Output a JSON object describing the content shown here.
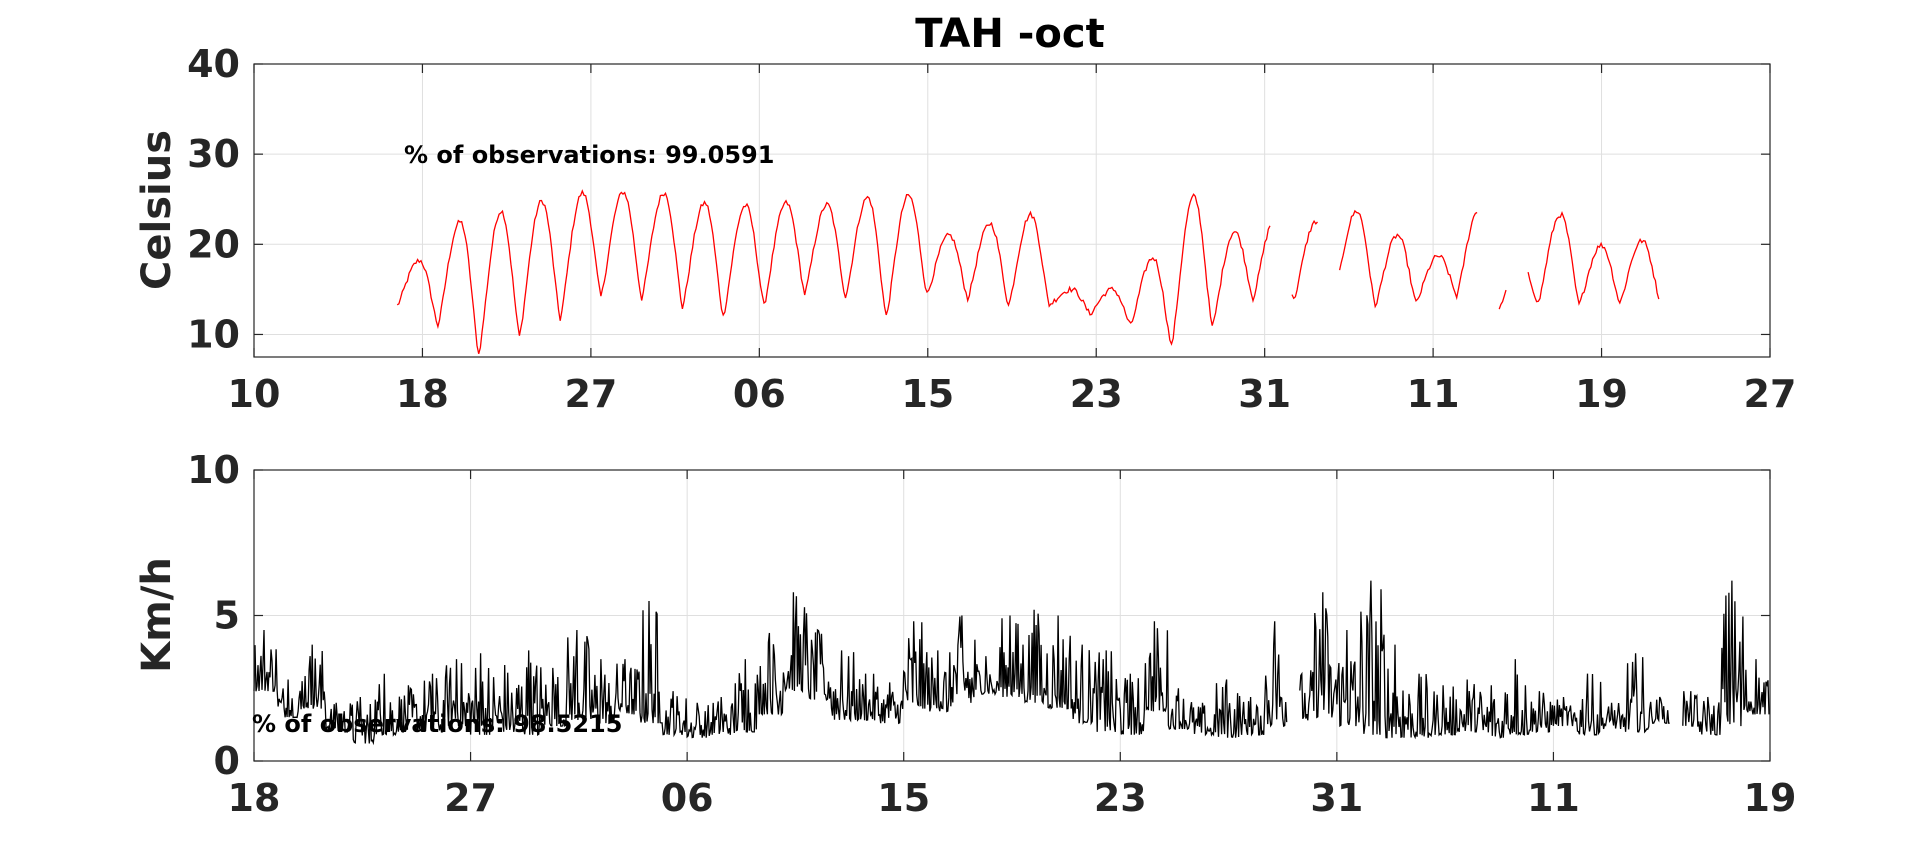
{
  "chart_data": [
    {
      "type": "line",
      "title": "TAH -oct",
      "ylabel": "Celsius",
      "ylim": [
        7.5,
        40
      ],
      "yticks": [
        10,
        20,
        30,
        40
      ],
      "xlim": [
        0,
        90
      ],
      "xtick_positions": [
        0,
        10,
        20,
        30,
        40,
        50,
        60,
        70,
        80,
        90
      ],
      "xtick_labels": [
        "10",
        "18",
        "27",
        "06",
        "15",
        "23",
        "31",
        "11",
        "19",
        "27"
      ],
      "annotation": "% of observations: 99.0591",
      "grid": true,
      "series": [
        {
          "color": "#ff0000",
          "diurnal_peaks": [
            18.2,
            22.5,
            23.7,
            24.8,
            25.7,
            25.8,
            25.7,
            24.6,
            24.3,
            24.6,
            24.4,
            25.2,
            25.4,
            21.0,
            22.3,
            23.3,
            15.0,
            15.0,
            18.5,
            25.3,
            21.4,
            22.9,
            22.5,
            23.7,
            21.0,
            18.7,
            23.9,
            18.0,
            23.3,
            19.9,
            20.4
          ],
          "diurnal_troughs": [
            13.2,
            11.0,
            7.8,
            9.8,
            11.7,
            14.2,
            14.0,
            13.0,
            12.0,
            13.2,
            14.5,
            14.2,
            12.0,
            14.5,
            14.0,
            13.2,
            13.3,
            12.3,
            11.0,
            8.7,
            10.8,
            14.0,
            13.8,
            14.5,
            13.2,
            13.5,
            14.3,
            12.3,
            13.5,
            13.3,
            13.5
          ],
          "gaps_at_day": [
            61.0,
            63.8,
            73.3,
            75.0
          ]
        }
      ]
    },
    {
      "type": "line",
      "title": "",
      "ylabel": "Km/h",
      "ylim": [
        0,
        10
      ],
      "yticks": [
        0,
        5,
        10
      ],
      "xlim": [
        0,
        63
      ],
      "xtick_positions": [
        0,
        9,
        18,
        27,
        36,
        45,
        54,
        63
      ],
      "xtick_labels": [
        "18",
        "27",
        "06",
        "15",
        "23",
        "31",
        "11",
        "19"
      ],
      "annotation": "% of observations: 98.5215",
      "grid": true,
      "series": [
        {
          "color": "#000000",
          "daily_peaks": [
            4.5,
            2.8,
            4.0,
            2.0,
            2.2,
            3.0,
            2.6,
            3.0,
            3.5,
            3.7,
            3.3,
            3.8,
            3.2,
            4.5,
            3.5,
            3.5,
            5.5,
            2.4,
            2.0,
            2.2,
            3.5,
            4.4,
            5.8,
            4.5,
            3.8,
            3.0,
            2.7,
            4.8,
            3.8,
            5.0,
            3.6,
            5.0,
            5.2,
            5.0,
            4.0,
            3.8,
            3.0,
            4.8,
            2.5,
            2.0,
            2.8,
            2.2,
            4.8,
            3.2,
            5.8,
            4.5,
            6.2,
            4.0,
            3.0,
            2.6,
            2.8,
            2.6,
            3.5,
            2.4,
            2.2,
            3.0,
            2.0,
            3.7,
            2.2,
            2.4,
            2.2,
            6.2,
            3.5
          ],
          "daily_troughs": [
            2.4,
            1.5,
            1.8,
            1.0,
            0.6,
            0.9,
            1.0,
            1.0,
            1.2,
            0.9,
            1.0,
            0.9,
            1.2,
            1.4,
            1.3,
            1.6,
            1.3,
            0.9,
            0.8,
            0.9,
            1.0,
            1.6,
            2.4,
            2.1,
            1.4,
            1.4,
            1.3,
            1.8,
            1.7,
            2.0,
            2.3,
            2.2,
            2.0,
            1.8,
            1.3,
            1.0,
            0.9,
            1.7,
            1.1,
            0.9,
            0.8,
            0.9,
            1.2,
            1.4,
            1.5,
            1.2,
            0.9,
            0.8,
            0.8,
            0.9,
            1.0,
            0.8,
            0.9,
            1.0,
            1.2,
            0.9,
            1.1,
            1.0,
            1.3,
            1.2,
            0.9,
            1.2,
            1.6
          ],
          "gaps_at_day": [
            43.2,
            59.1
          ]
        }
      ]
    }
  ]
}
